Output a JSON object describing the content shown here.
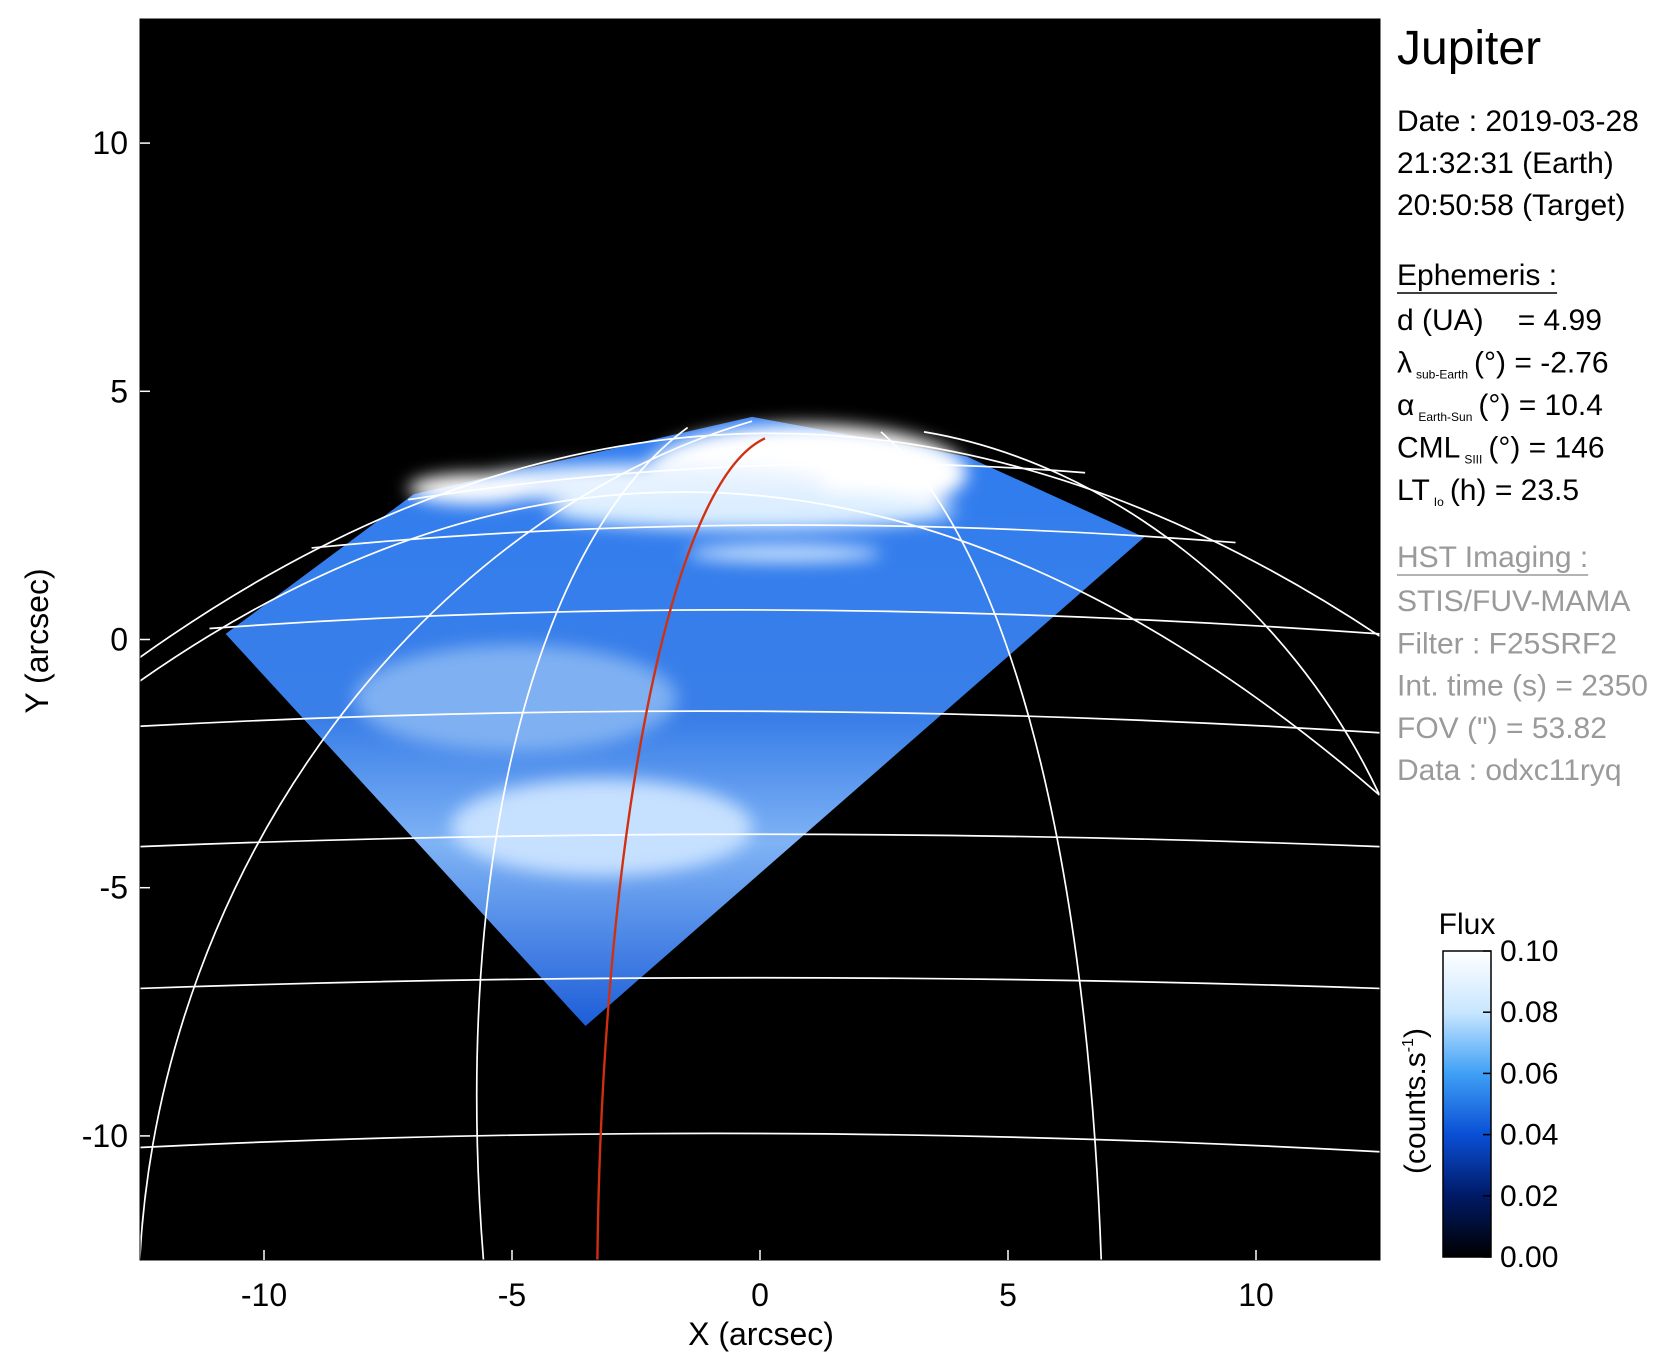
{
  "chart_data": {
    "type": "image",
    "title": "Jupiter",
    "xlabel": "X (arcsec)",
    "ylabel": "Y (arcsec)",
    "xlim": [
      -12.5,
      12.5
    ],
    "ylim": [
      -12.5,
      12.5
    ],
    "xticks": [
      -10,
      -5,
      0,
      5,
      10
    ],
    "yticks": [
      -10,
      -5,
      0,
      5,
      10
    ],
    "info": {
      "date": [
        "Date : 2019-03-28",
        "21:32:31 (Earth)",
        "20:50:58 (Target)"
      ],
      "ephemeris_title": "Ephemeris :",
      "ephemeris": [
        {
          "main": "d (UA)",
          "rest": "= 4.99"
        },
        {
          "main": "λ",
          "sub": "sub-Earth",
          "rest": "(°) = -2.76"
        },
        {
          "main": "α",
          "sub": "Earth-Sun",
          "rest": "(°) = 10.4"
        },
        {
          "main": "CML",
          "sub": "SIII",
          "rest": "(°) = 146"
        },
        {
          "main": "LT",
          "sub": "Io",
          "rest": "(h) = 23.5"
        }
      ],
      "hst_title": "HST Imaging :",
      "hst": [
        "STIS/FUV-MAMA",
        "Filter : F25SRF2",
        "Int. time (s) = 2350",
        "FOV (\") = 53.82",
        "Data : odxc11ryq"
      ]
    },
    "colorbar": {
      "title": "Flux",
      "label": "(counts.s",
      "label_sup": "-1",
      "label_end": ")",
      "lim": [
        0,
        0.1
      ],
      "ticks": [
        {
          "value": 0,
          "label": "0.00"
        },
        0.02,
        0.04,
        0.06,
        0.08,
        {
          "value": 0.1,
          "label": "0.10"
        }
      ],
      "colors": [
        "#000000",
        "#001a66",
        "#0a4fd6",
        "#3fa0f5",
        "#c8e6ff",
        "#ffffff"
      ]
    }
  }
}
